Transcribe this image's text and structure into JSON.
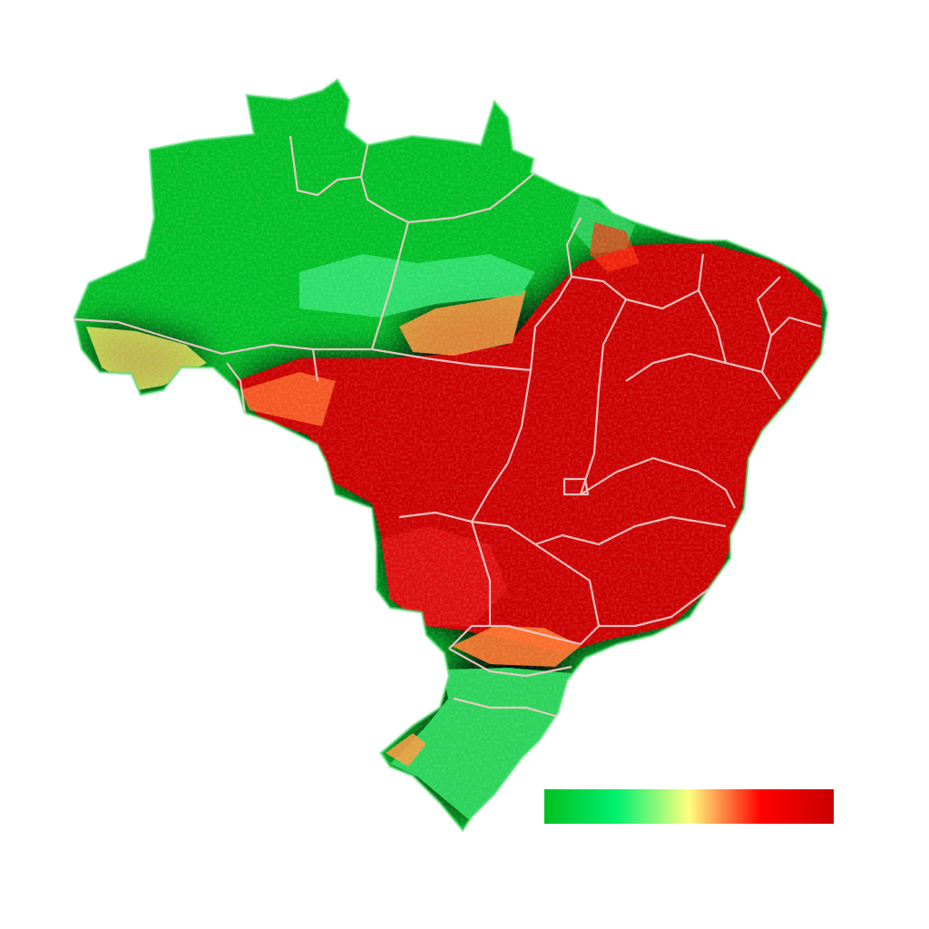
{
  "map": {
    "country": "",
    "colors": {
      "low": "#00bf26",
      "low_mid": "#00e86a",
      "mid": "#ffff80",
      "mid_high": "#ff6020",
      "high": "#cc0000",
      "border": "#f2c8c8"
    }
  },
  "legend": {
    "stops": [
      "#00c020",
      "#00f070",
      "#ffff80",
      "#ff0000",
      "#c80000"
    ],
    "labels": []
  }
}
